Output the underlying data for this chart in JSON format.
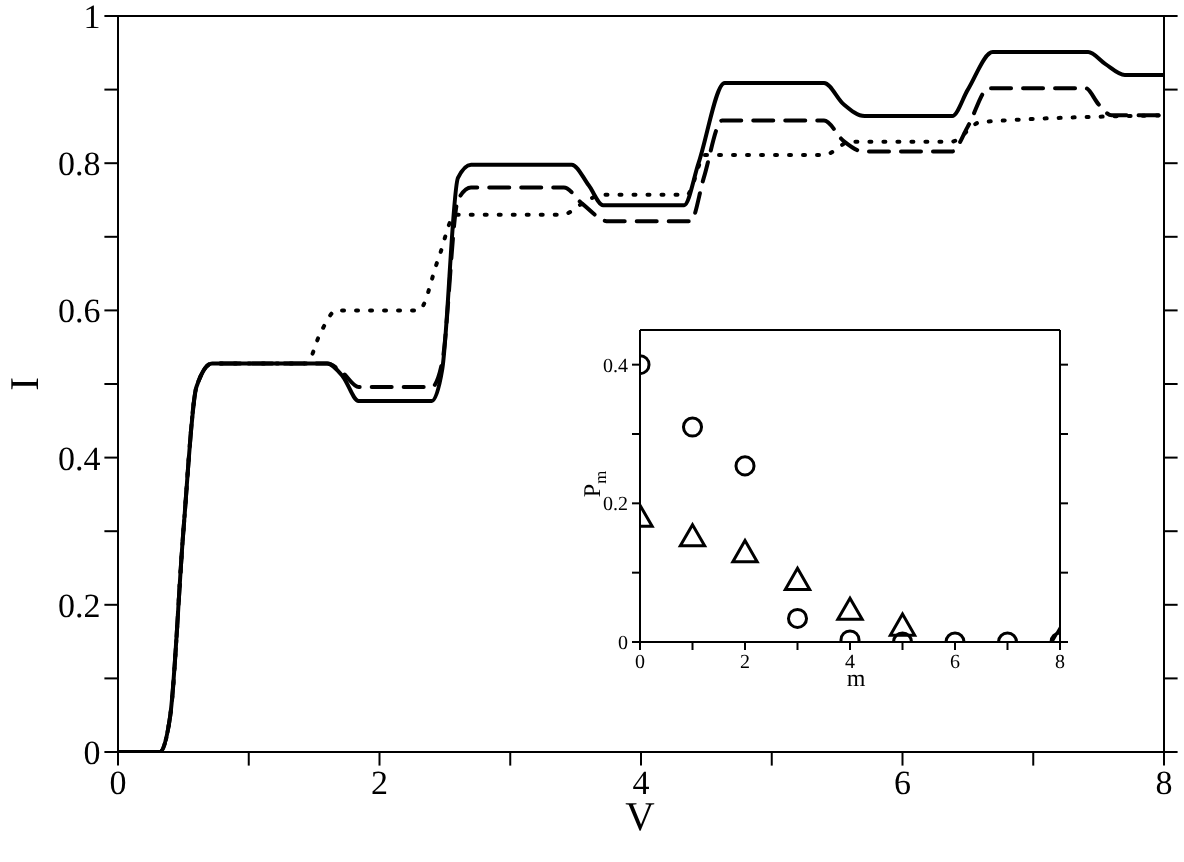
{
  "chart_data": [
    {
      "type": "line",
      "xlabel": "V",
      "ylabel": "I",
      "xlim": [
        0,
        8
      ],
      "ylim": [
        0,
        1
      ],
      "xticks": [
        0,
        {
          "value": 1,
          "label": null
        },
        2,
        {
          "value": 3,
          "label": null
        },
        4,
        {
          "value": 5,
          "label": null
        },
        6,
        {
          "value": 7,
          "label": null
        },
        8
      ],
      "yticks": [
        0,
        {
          "value": 0.1,
          "label": null
        },
        0.2,
        {
          "value": 0.3,
          "label": null
        },
        0.4,
        {
          "value": 0.5,
          "label": null
        },
        0.6,
        {
          "value": 0.7,
          "label": null
        },
        0.8,
        {
          "value": 0.9,
          "label": null
        },
        1
      ],
      "series": [
        {
          "color": "#000000",
          "line_style": "solid",
          "x": [
            0,
            0.32,
            0.4,
            0.5,
            0.6,
            0.72,
            1.6,
            1.72,
            1.84,
            2.4,
            2.48,
            2.6,
            2.7,
            3.47,
            3.6,
            3.71,
            4.33,
            4.44,
            4.64,
            4.75,
            5.4,
            5.55,
            5.71,
            6.38,
            6.5,
            6.69,
            6.8,
            7.42,
            7.55,
            7.7,
            8
          ],
          "values": [
            0,
            0,
            0.05,
            0.3,
            0.496,
            0.528,
            0.528,
            0.51,
            0.477,
            0.477,
            0.52,
            0.78,
            0.798,
            0.798,
            0.77,
            0.743,
            0.743,
            0.8,
            0.909,
            0.909,
            0.909,
            0.88,
            0.864,
            0.864,
            0.9,
            0.951,
            0.951,
            0.951,
            0.935,
            0.92,
            0.92
          ]
        },
        {
          "color": "#000000",
          "line_style": "dashed",
          "x": [
            0,
            0.32,
            0.4,
            0.5,
            0.6,
            0.72,
            1.6,
            1.72,
            1.84,
            2.4,
            2.48,
            2.6,
            2.7,
            3.41,
            3.55,
            3.75,
            4.38,
            4.48,
            4.62,
            4.75,
            5.4,
            5.55,
            5.7,
            6.38,
            6.5,
            6.66,
            6.8,
            7.4,
            7.5,
            7.6,
            8
          ],
          "values": [
            0,
            0,
            0.05,
            0.3,
            0.496,
            0.528,
            0.528,
            0.515,
            0.496,
            0.496,
            0.53,
            0.75,
            0.767,
            0.767,
            0.745,
            0.721,
            0.721,
            0.78,
            0.858,
            0.858,
            0.858,
            0.83,
            0.816,
            0.816,
            0.85,
            0.902,
            0.902,
            0.902,
            0.88,
            0.865,
            0.865
          ]
        },
        {
          "color": "#000000",
          "line_style": "dotted",
          "x": [
            0,
            0.32,
            0.4,
            0.5,
            0.6,
            0.72,
            1.44,
            1.55,
            1.67,
            2.3,
            2.45,
            2.58,
            3.4,
            3.55,
            3.7,
            4.35,
            4.49,
            5.4,
            5.6,
            6.37,
            6.6,
            8
          ],
          "values": [
            0,
            0,
            0.05,
            0.3,
            0.496,
            0.528,
            0.528,
            0.57,
            0.6,
            0.6,
            0.67,
            0.73,
            0.73,
            0.745,
            0.757,
            0.757,
            0.811,
            0.811,
            0.829,
            0.829,
            0.856,
            0.865
          ]
        }
      ]
    },
    {
      "type": "scatter",
      "xlabel": "m",
      "ylabel": "P$_{m}$",
      "xlim": [
        0,
        8
      ],
      "ylim": [
        0,
        0.45
      ],
      "xticks": [
        0,
        {
          "value": 1,
          "label": null
        },
        2,
        {
          "value": 3,
          "label": null
        },
        4,
        {
          "value": 5,
          "label": null
        },
        6,
        {
          "value": 7,
          "label": null
        },
        8
      ],
      "yticks": [
        0,
        {
          "value": 0.1,
          "label": null
        },
        0.2,
        {
          "value": 0.3,
          "label": null
        },
        0.4
      ],
      "series": [
        {
          "color": "#000000",
          "marker": "circle",
          "x": [
            0,
            1,
            2,
            3,
            4,
            5,
            6,
            7,
            8
          ],
          "values": [
            0.4,
            0.31,
            0.254,
            0.034,
            0.003,
            0,
            0,
            0,
            0
          ]
        },
        {
          "color": "#000000",
          "marker": "triangle",
          "x": [
            0,
            1,
            2,
            3,
            4,
            5,
            6,
            7,
            8
          ],
          "values": [
            0.177,
            0.149,
            0.126,
            0.086,
            0.043,
            0.02,
            null,
            null,
            0
          ]
        }
      ]
    }
  ]
}
